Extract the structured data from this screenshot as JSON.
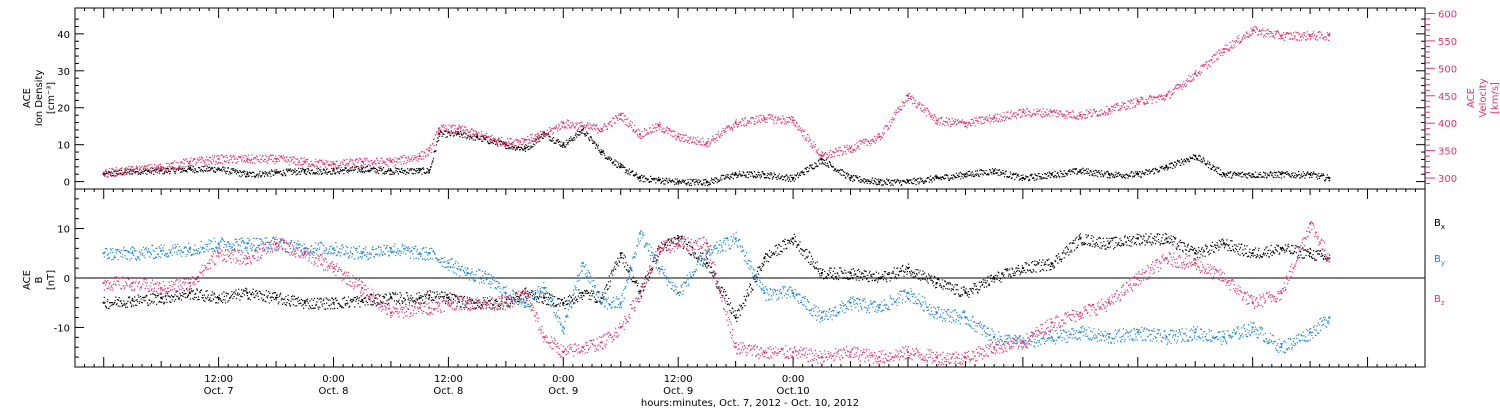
{
  "colors": {
    "black": "#000000",
    "red": "#e8336a",
    "blue": "#1a85d9"
  },
  "chart_data": [
    {
      "type": "scatter",
      "panel": "top",
      "ylabel_left": [
        "ACE",
        "Ion Density",
        "[cm⁻³]"
      ],
      "ylabel_right": [
        "ACE",
        "Velocity",
        "[km/s]"
      ],
      "ylim_left": [
        -2,
        47
      ],
      "ylim_right": [
        280,
        610
      ],
      "left_ticks": [
        "0",
        "10",
        "20",
        "30",
        "40"
      ],
      "right_ticks": [
        "300",
        "350",
        "400",
        "450",
        "500",
        "550",
        "600"
      ],
      "series": [
        {
          "axis": "left",
          "color": "#000000",
          "hours": [
            0,
            3,
            6,
            9,
            12,
            15,
            18,
            21,
            24,
            27,
            30,
            33,
            34,
            35,
            37,
            39,
            42,
            44,
            46,
            48,
            50,
            52,
            54,
            56,
            58,
            60,
            63,
            66,
            69,
            72,
            75,
            78,
            81,
            84,
            87,
            90,
            93,
            96,
            99,
            102,
            105,
            108,
            111,
            114,
            117,
            120,
            123,
            126,
            128
          ],
          "values": [
            2,
            3,
            3,
            3.5,
            3.5,
            2,
            2.5,
            3,
            3,
            3.5,
            3,
            3,
            3,
            13,
            13,
            12,
            10,
            9,
            13,
            10,
            14,
            8,
            4,
            1,
            0.5,
            0,
            0,
            2,
            2,
            1,
            6,
            1,
            0,
            0,
            1,
            2,
            3,
            1,
            2,
            3,
            2,
            2,
            4,
            7,
            2,
            2,
            2,
            2,
            1
          ]
        },
        {
          "axis": "right",
          "color": "#e8336a",
          "hours": [
            0,
            3,
            6,
            9,
            12,
            15,
            18,
            21,
            24,
            27,
            30,
            33,
            34,
            35,
            37,
            39,
            42,
            44,
            46,
            48,
            50,
            52,
            54,
            56,
            58,
            60,
            63,
            66,
            69,
            72,
            75,
            78,
            81,
            84,
            87,
            90,
            93,
            96,
            99,
            102,
            105,
            108,
            111,
            114,
            117,
            120,
            123,
            126,
            128
          ],
          "values": [
            310,
            315,
            320,
            330,
            335,
            335,
            335,
            330,
            325,
            330,
            330,
            340,
            350,
            390,
            390,
            380,
            365,
            370,
            380,
            400,
            395,
            390,
            415,
            380,
            395,
            375,
            365,
            400,
            410,
            405,
            340,
            355,
            375,
            450,
            405,
            400,
            410,
            420,
            420,
            415,
            425,
            440,
            450,
            490,
            535,
            570,
            560,
            560,
            560
          ]
        }
      ]
    },
    {
      "type": "scatter",
      "panel": "bottom",
      "ylabel": [
        "ACE",
        "B",
        "[nT]"
      ],
      "ylim": [
        -18,
        18
      ],
      "ticks": [
        "10",
        "0",
        "-10"
      ],
      "xlabel": "hours:minutes, Oct.  7, 2012 - Oct. 10, 2012",
      "xlim_hours": [
        -3,
        138
      ],
      "x_ticks": [
        {
          "hour": 12,
          "time": "12:00",
          "date": "Oct. 7"
        },
        {
          "hour": 24,
          "time": "0:00",
          "date": "Oct. 8"
        },
        {
          "hour": 36,
          "time": "12:00",
          "date": "Oct. 8"
        },
        {
          "hour": 48,
          "time": "0:00",
          "date": "Oct. 9"
        },
        {
          "hour": 60,
          "time": "12:00",
          "date": "Oct. 9"
        },
        {
          "hour": 72,
          "time": "0:00",
          "date": "Oct.10"
        }
      ],
      "series": [
        {
          "name": "Bx",
          "color": "#000000",
          "hours": [
            0,
            3,
            6,
            9,
            12,
            15,
            18,
            21,
            24,
            27,
            30,
            33,
            34,
            36,
            38,
            40,
            42,
            44,
            46,
            48,
            50,
            52,
            54,
            56,
            58,
            60,
            63,
            66,
            69,
            72,
            75,
            78,
            81,
            84,
            87,
            90,
            93,
            96,
            99,
            102,
            105,
            108,
            111,
            114,
            117,
            120,
            123,
            126,
            128
          ],
          "values": [
            -5,
            -4.5,
            -4,
            -3,
            -4,
            -3,
            -4,
            -5,
            -5,
            -4.5,
            -4,
            -4,
            -3.5,
            -4,
            -5,
            -5,
            -5,
            -3,
            -4,
            -5,
            -3,
            -4,
            5,
            -3,
            6,
            8,
            3,
            -8,
            4,
            8,
            1,
            1,
            0,
            2,
            -1,
            -3,
            0,
            2,
            3,
            8,
            7,
            8,
            8,
            5,
            7,
            5,
            6,
            5,
            4
          ]
        },
        {
          "name": "By",
          "color": "#1a85d9",
          "hours": [
            0,
            3,
            6,
            9,
            12,
            15,
            18,
            21,
            24,
            27,
            30,
            33,
            34,
            36,
            38,
            40,
            42,
            44,
            46,
            48,
            50,
            52,
            54,
            56,
            58,
            60,
            63,
            66,
            69,
            72,
            75,
            78,
            81,
            84,
            87,
            90,
            93,
            96,
            99,
            102,
            105,
            108,
            111,
            114,
            117,
            120,
            123,
            126,
            128
          ],
          "values": [
            5,
            5,
            5.5,
            6,
            7,
            7,
            7,
            6,
            6,
            5,
            6,
            5,
            5,
            3,
            1,
            0,
            -3,
            -5,
            -2,
            -10,
            3,
            -5,
            -5,
            9,
            2,
            -3,
            5,
            8,
            -3,
            -3,
            -8,
            -5,
            -6,
            -3,
            -7,
            -8,
            -12,
            -13,
            -12,
            -11,
            -12,
            -11,
            -12,
            -11,
            -12,
            -10,
            -14,
            -11,
            -8
          ]
        },
        {
          "name": "Bz",
          "color": "#e8336a",
          "hours": [
            0,
            3,
            6,
            9,
            12,
            15,
            18,
            21,
            24,
            27,
            30,
            33,
            34,
            36,
            38,
            40,
            42,
            44,
            46,
            48,
            50,
            52,
            54,
            56,
            58,
            60,
            63,
            66,
            69,
            72,
            75,
            78,
            81,
            84,
            87,
            90,
            93,
            96,
            99,
            102,
            105,
            108,
            111,
            114,
            117,
            120,
            123,
            126,
            128
          ],
          "values": [
            -1,
            -1,
            -2,
            -1,
            5,
            4,
            7,
            5,
            2,
            -2,
            -7,
            -6,
            -6,
            -5,
            -5,
            -5,
            -5,
            -3,
            -12,
            -15,
            -14,
            -13,
            -10,
            -3,
            6,
            7,
            7,
            -14,
            -15,
            -15,
            -16,
            -15,
            -16,
            -15,
            -16,
            -16,
            -14,
            -13,
            -9,
            -7,
            -5,
            0,
            4,
            3,
            0,
            -5,
            -3,
            11,
            4
          ]
        }
      ],
      "legend": [
        "B",
        "B",
        "B"
      ],
      "legend_sub": [
        "x",
        "y",
        "z"
      ]
    }
  ]
}
